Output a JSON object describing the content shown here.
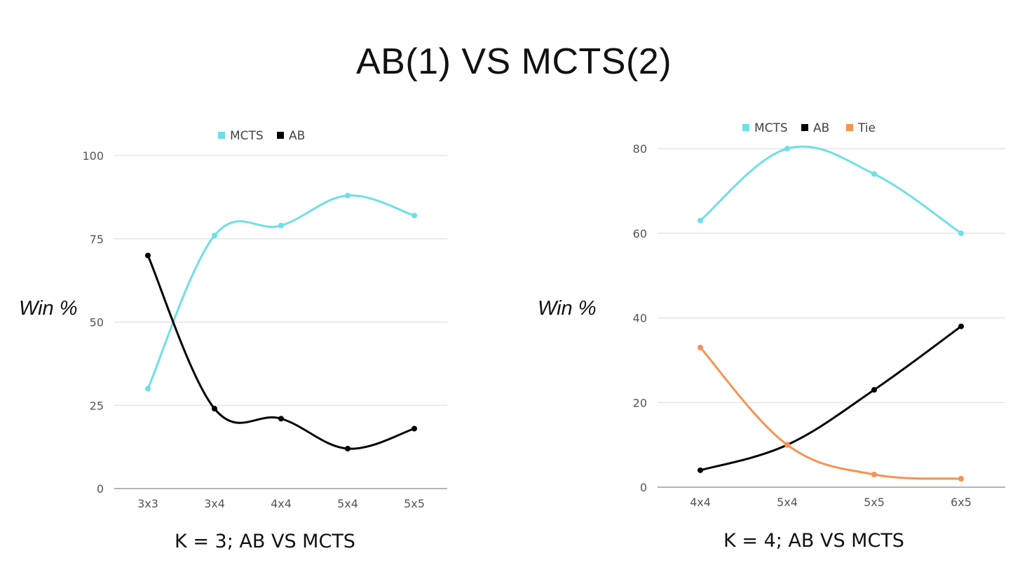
{
  "title": "AB(1) VS MCTS(2)",
  "chart_data": [
    {
      "type": "line",
      "title": "K = 3; AB VS MCTS",
      "xlabel": "",
      "ylabel": "Win %",
      "categories": [
        "3x3",
        "3x4",
        "4x4",
        "5x4",
        "5x5"
      ],
      "ylim": [
        0,
        100
      ],
      "yticks": [
        0,
        25,
        50,
        75,
        100
      ],
      "grid": true,
      "legend": "top-center",
      "series": [
        {
          "name": "MCTS",
          "color": "#6ee0e4",
          "values": [
            30,
            76,
            79,
            88,
            82
          ]
        },
        {
          "name": "AB",
          "color": "#000000",
          "values": [
            70,
            24,
            21,
            12,
            18
          ]
        }
      ]
    },
    {
      "type": "line",
      "title": "K = 4; AB VS MCTS",
      "xlabel": "",
      "ylabel": "Win %",
      "categories": [
        "4x4",
        "5x4",
        "5x5",
        "6x5"
      ],
      "ylim": [
        0,
        80
      ],
      "yticks": [
        0,
        20,
        40,
        60,
        80
      ],
      "grid": true,
      "legend": "top-center",
      "series": [
        {
          "name": "MCTS",
          "color": "#6ee0e4",
          "values": [
            63,
            80,
            74,
            60
          ]
        },
        {
          "name": "AB",
          "color": "#000000",
          "values": [
            4,
            10,
            23,
            38
          ]
        },
        {
          "name": "Tie",
          "color": "#f79250",
          "values": [
            33,
            10,
            3,
            2
          ]
        }
      ]
    }
  ]
}
